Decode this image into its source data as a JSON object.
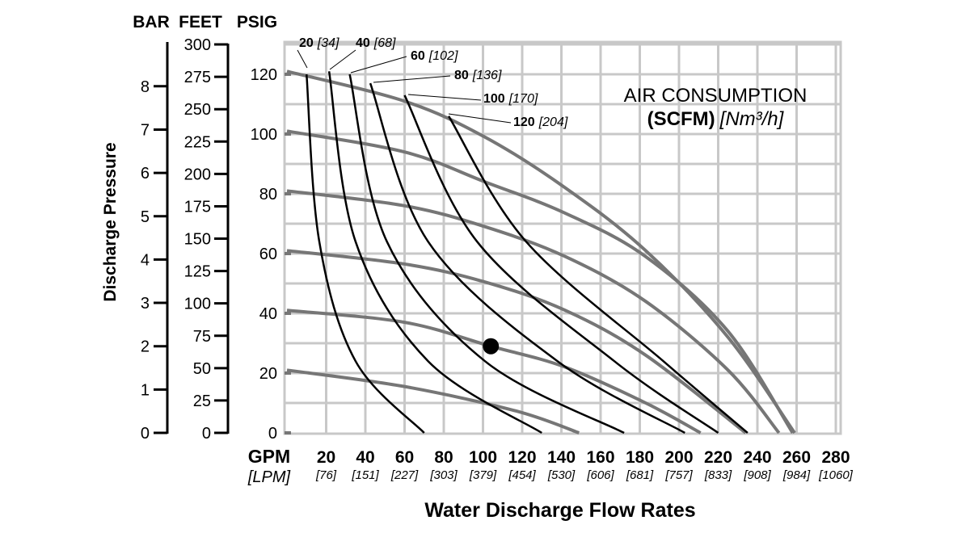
{
  "chart_data": {
    "type": "line",
    "title": "AIR CONSUMPTION",
    "subtitle_bold": "(SCFM)",
    "subtitle_metric": "[Nm³/h]",
    "xlabel": "Water Discharge Flow Rates",
    "ylabel": "Discharge Pressure",
    "x_unit": "GPM",
    "x_unit_alt": "[LPM]",
    "xlim": [
      0,
      282
    ],
    "ylim": [
      0,
      130
    ],
    "grid": true,
    "x_ticks": [
      20,
      40,
      60,
      80,
      100,
      120,
      140,
      160,
      180,
      200,
      220,
      240,
      260,
      280
    ],
    "x_ticks_lpm": [
      "[76]",
      "[151]",
      "[227]",
      "[303]",
      "[379]",
      "[454]",
      "[530]",
      "[606]",
      "[681]",
      "[757]",
      "[833]",
      "[908]",
      "[984]",
      "[1060]"
    ],
    "y_axes": {
      "bar": {
        "header": "BAR",
        "ticks": [
          0,
          1,
          2,
          3,
          4,
          5,
          6,
          7,
          8
        ],
        "psi_per_unit": 14.5
      },
      "feet": {
        "header": "FEET",
        "ticks": [
          0,
          25,
          50,
          75,
          100,
          125,
          150,
          175,
          200,
          225,
          250,
          275,
          300
        ],
        "psi_per_unit": 0.4333
      },
      "psig": {
        "header": "PSIG",
        "ticks": [
          0,
          20,
          40,
          60,
          80,
          100,
          120
        ]
      }
    },
    "pressure_curves": [
      {
        "psig": 20,
        "points": [
          [
            0,
            21
          ],
          [
            60,
            15.5
          ],
          [
            117,
            7.3
          ],
          [
            149,
            0
          ]
        ]
      },
      {
        "psig": 40,
        "points": [
          [
            0,
            41
          ],
          [
            60,
            37
          ],
          [
            104,
            29
          ],
          [
            142,
            22
          ],
          [
            183,
            10
          ],
          [
            211,
            0
          ]
        ]
      },
      {
        "psig": 60,
        "points": [
          [
            0,
            61
          ],
          [
            60,
            56.5
          ],
          [
            101,
            50.5
          ],
          [
            142,
            41
          ],
          [
            183,
            26
          ],
          [
            234,
            0
          ]
        ]
      },
      {
        "psig": 80,
        "points": [
          [
            0,
            81
          ],
          [
            60,
            76
          ],
          [
            101,
            69
          ],
          [
            142,
            59
          ],
          [
            183,
            44
          ],
          [
            225,
            21
          ],
          [
            251,
            0
          ]
        ]
      },
      {
        "psig": 100,
        "points": [
          [
            0,
            101
          ],
          [
            60,
            94
          ],
          [
            101,
            84
          ],
          [
            142,
            73.5
          ],
          [
            183,
            59
          ],
          [
            225,
            34
          ],
          [
            258,
            0
          ]
        ]
      },
      {
        "psig": 120,
        "points": [
          [
            0,
            121
          ],
          [
            60,
            111
          ],
          [
            101,
            99
          ],
          [
            142,
            82
          ],
          [
            183,
            61
          ],
          [
            225,
            32
          ],
          [
            259,
            0
          ]
        ]
      }
    ],
    "air_curves": [
      {
        "label": "20",
        "metric": "[34]",
        "points": [
          [
            10,
            120
          ],
          [
            16.5,
            64
          ],
          [
            35,
            24
          ],
          [
            70,
            0
          ]
        ]
      },
      {
        "label": "40",
        "metric": "[68]",
        "points": [
          [
            21.5,
            121
          ],
          [
            35,
            64
          ],
          [
            72,
            24
          ],
          [
            130,
            0
          ]
        ]
      },
      {
        "label": "60",
        "metric": "[102]",
        "points": [
          [
            32,
            120
          ],
          [
            51,
            64
          ],
          [
            101,
            24
          ],
          [
            172,
            0
          ]
        ]
      },
      {
        "label": "80",
        "metric": "[136]",
        "points": [
          [
            42.5,
            117
          ],
          [
            72,
            64
          ],
          [
            138,
            24
          ],
          [
            203,
            0
          ]
        ]
      },
      {
        "label": "100",
        "metric": "[170]",
        "points": [
          [
            60,
            113
          ],
          [
            97,
            64
          ],
          [
            167,
            24
          ],
          [
            220,
            0
          ]
        ]
      },
      {
        "label": "120",
        "metric": "[204]",
        "points": [
          [
            82.5,
            106
          ],
          [
            122,
            64
          ],
          [
            192,
            24
          ],
          [
            235,
            0
          ]
        ]
      }
    ],
    "marker": {
      "gpm": 104,
      "psig": 29
    },
    "colors": {
      "pressure_curve": "#767676",
      "air_curve": "#000000",
      "grid": "#c8c8c8"
    }
  }
}
